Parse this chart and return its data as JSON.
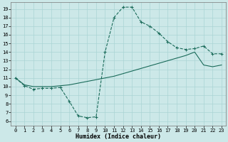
{
  "xlabel": "Humidex (Indice chaleur)",
  "bg_color": "#cce8e8",
  "line_color": "#1a6b5a",
  "grid_color": "#aad4d4",
  "xlim": [
    -0.5,
    23.5
  ],
  "ylim": [
    5.5,
    19.8
  ],
  "xticks": [
    0,
    1,
    2,
    3,
    4,
    5,
    6,
    7,
    8,
    9,
    10,
    11,
    12,
    13,
    14,
    15,
    16,
    17,
    18,
    19,
    20,
    21,
    22,
    23
  ],
  "yticks": [
    6,
    7,
    8,
    9,
    10,
    11,
    12,
    13,
    14,
    15,
    16,
    17,
    18,
    19
  ],
  "curve1_x": [
    0,
    1,
    2,
    3,
    4,
    5,
    6,
    7,
    8,
    9,
    10,
    11,
    12,
    13,
    14,
    15,
    16,
    17,
    18,
    19,
    20,
    21,
    22,
    23
  ],
  "curve1_y": [
    11.0,
    10.1,
    9.7,
    9.8,
    9.8,
    9.9,
    8.3,
    6.6,
    6.4,
    6.5,
    14.0,
    18.0,
    19.2,
    19.2,
    17.5,
    17.0,
    16.2,
    15.2,
    14.5,
    14.3,
    14.4,
    14.7,
    13.8,
    13.8
  ],
  "curve2_x": [
    0,
    1,
    2,
    3,
    4,
    5,
    6,
    7,
    8,
    9,
    10,
    11,
    12,
    13,
    14,
    15,
    16,
    17,
    18,
    19,
    20,
    21,
    22,
    23
  ],
  "curve2_y": [
    11.0,
    10.2,
    10.0,
    10.0,
    10.0,
    10.1,
    10.2,
    10.4,
    10.6,
    10.8,
    11.0,
    11.2,
    11.5,
    11.8,
    12.1,
    12.4,
    12.7,
    13.0,
    13.3,
    13.6,
    14.0,
    12.5,
    12.3,
    12.5
  ],
  "tick_fontsize": 5.0,
  "xlabel_fontsize": 6.0,
  "marker_size": 2.5,
  "linewidth": 0.8
}
